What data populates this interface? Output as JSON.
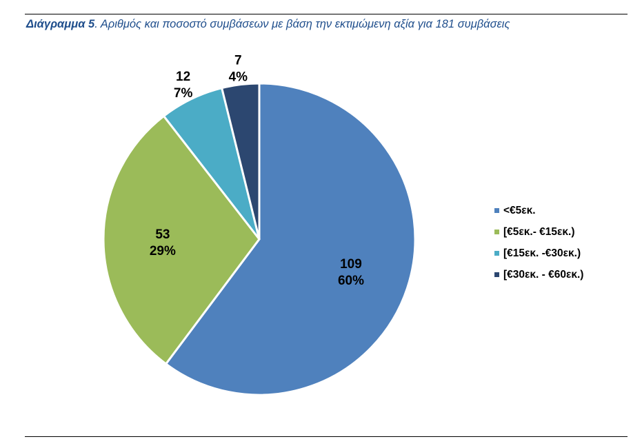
{
  "caption": {
    "lead": "Διάγραμμα 5",
    "text": ". Αριθμός και ποσοστό συμβάσεων με βάση την εκτιμώμενη αξία για 181 συμβάσεις"
  },
  "chart_data": {
    "type": "pie",
    "title": "Διάγραμμα 5. Αριθμός και ποσοστό συμβάσεων με βάση την εκτιμώμενη αξία για 181 συμβάσεις",
    "legend_position": "right",
    "slices": [
      {
        "label": "<€5εκ.",
        "value": 109,
        "percent_label": "60%",
        "color": "#4f81bd"
      },
      {
        "label": "[€5εκ.- €15εκ.)",
        "value": 53,
        "percent_label": "29%",
        "color": "#9bbb59"
      },
      {
        "label": "[€15εκ. -€30εκ.)",
        "value": 12,
        "percent_label": "7%",
        "color": "#4bacc6"
      },
      {
        "label": "[€30εκ. - €60εκ.)",
        "value": 7,
        "percent_label": "4%",
        "color": "#2c4770"
      }
    ]
  }
}
